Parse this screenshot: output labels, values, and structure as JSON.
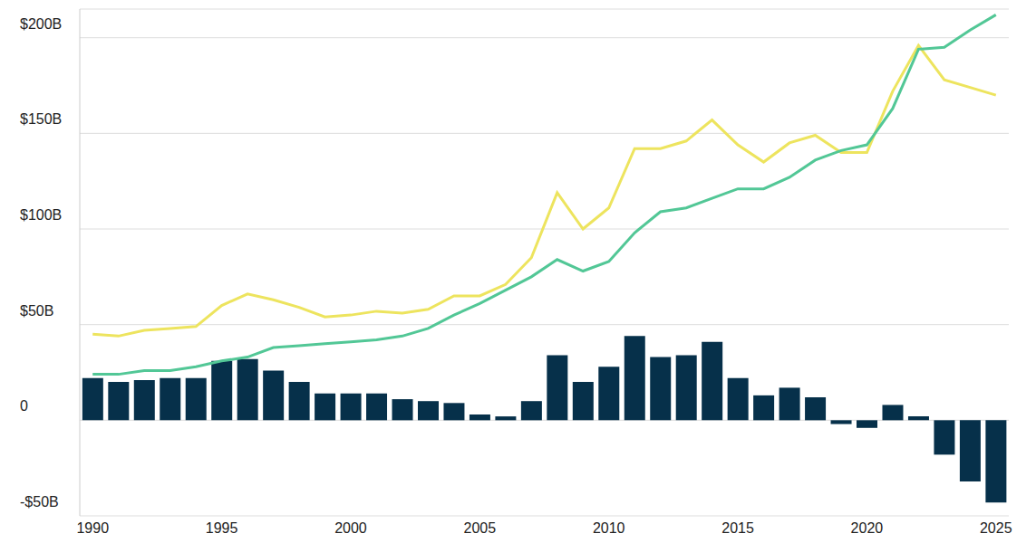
{
  "chart_data": {
    "type": "bar",
    "x": [
      1990,
      1991,
      1992,
      1993,
      1994,
      1995,
      1996,
      1997,
      1998,
      1999,
      2000,
      2001,
      2002,
      2003,
      2004,
      2005,
      2006,
      2007,
      2008,
      2009,
      2010,
      2011,
      2012,
      2013,
      2014,
      2015,
      2016,
      2017,
      2018,
      2019,
      2020,
      2021,
      2022,
      2023,
      2024,
      2025
    ],
    "xticks": [
      1990,
      1995,
      2000,
      2005,
      2010,
      2015,
      2020,
      2025
    ],
    "ylim": [
      -50,
      215
    ],
    "yticks": [
      {
        "value": -50,
        "label": "-$50B"
      },
      0,
      {
        "value": 50,
        "label": "$50B"
      },
      {
        "value": 100,
        "label": "$100B"
      },
      {
        "value": 150,
        "label": "$150B"
      },
      {
        "value": 200,
        "label": "$200B"
      }
    ],
    "grid": true,
    "series": [
      {
        "type": "bar",
        "color": "#06304a",
        "values": [
          22,
          20,
          21,
          22,
          22,
          31,
          32,
          26,
          20,
          14,
          14,
          14,
          11,
          10,
          9,
          3,
          2,
          10,
          34,
          20,
          28,
          44,
          33,
          34,
          41,
          22,
          13,
          17,
          12,
          -2,
          -4,
          8,
          2,
          -18,
          -32,
          -43
        ]
      },
      {
        "type": "line",
        "color": "#ede45e",
        "values": [
          45,
          44,
          47,
          48,
          49,
          60,
          66,
          63,
          59,
          54,
          55,
          57,
          56,
          58,
          65,
          65,
          71,
          85,
          119,
          100,
          111,
          142,
          142,
          146,
          157,
          144,
          135,
          145,
          149,
          140,
          140,
          172,
          196,
          178,
          174,
          170
        ]
      },
      {
        "type": "line",
        "color": "#52c796",
        "values": [
          24,
          24,
          26,
          26,
          28,
          31,
          33,
          38,
          39,
          40,
          41,
          42,
          44,
          48,
          55,
          61,
          68,
          75,
          84,
          78,
          83,
          98,
          109,
          111,
          116,
          121,
          121,
          127,
          136,
          141,
          144,
          163,
          194,
          195,
          204,
          212
        ]
      }
    ]
  }
}
